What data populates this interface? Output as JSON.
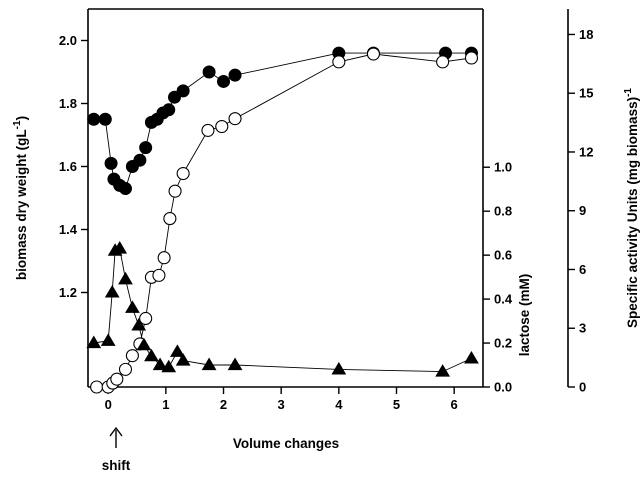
{
  "chart_data": {
    "type": "line",
    "xlabel": "Volume changes",
    "annotation": "shift",
    "x_ticks": [
      0,
      1,
      2,
      3,
      4,
      5,
      6
    ],
    "xlim": [
      -0.35,
      6.5
    ],
    "axes": {
      "left": {
        "label": "biomass dry weight (gL",
        "superscript": "-1",
        "label_suffix": ")",
        "ticks": [
          1.2,
          1.4,
          1.6,
          1.8,
          2.0
        ],
        "tick_labels": [
          "1.2",
          "1.4",
          "1.6",
          "1.8",
          "2.0"
        ],
        "ylim": [
          0.9,
          2.1
        ]
      },
      "middle": {
        "label": "lactose (mM)",
        "ticks": [
          0.0,
          0.2,
          0.4,
          0.6,
          0.8,
          1.0
        ],
        "tick_labels": [
          "0.0",
          "0.2",
          "0.4",
          "0.6",
          "0.8",
          "1.0"
        ],
        "ylim": [
          0,
          1.72
        ]
      },
      "right": {
        "label": "Specific activity Units (mg biomass)",
        "superscript": "-1",
        "ticks": [
          0,
          3,
          6,
          9,
          12,
          15,
          18
        ],
        "tick_labels": [
          "0",
          "3",
          "6",
          "9",
          "12",
          "15",
          "18"
        ],
        "ylim": [
          0,
          19.3
        ]
      }
    },
    "series": [
      {
        "marker": "filled-circle",
        "axis": "left",
        "points": [
          [
            -0.25,
            1.75
          ],
          [
            -0.05,
            1.75
          ],
          [
            0.05,
            1.61
          ],
          [
            0.1,
            1.56
          ],
          [
            0.2,
            1.54
          ],
          [
            0.3,
            1.53
          ],
          [
            0.42,
            1.6
          ],
          [
            0.55,
            1.62
          ],
          [
            0.65,
            1.66
          ],
          [
            0.75,
            1.74
          ],
          [
            0.85,
            1.75
          ],
          [
            0.95,
            1.77
          ],
          [
            1.05,
            1.78
          ],
          [
            1.15,
            1.82
          ],
          [
            1.3,
            1.84
          ],
          [
            1.75,
            1.9
          ],
          [
            2.0,
            1.87
          ],
          [
            2.2,
            1.89
          ],
          [
            4.0,
            1.96
          ],
          [
            4.6,
            1.96
          ],
          [
            5.85,
            1.96
          ],
          [
            6.3,
            1.96
          ]
        ]
      },
      {
        "marker": "open-circle",
        "axis": "right",
        "points": [
          [
            -0.2,
            0.0
          ],
          [
            0.0,
            0.0
          ],
          [
            0.08,
            0.2
          ],
          [
            0.15,
            0.4
          ],
          [
            0.3,
            0.9
          ],
          [
            0.42,
            1.6
          ],
          [
            0.55,
            2.2
          ],
          [
            0.65,
            3.5
          ],
          [
            0.75,
            5.6
          ],
          [
            0.88,
            5.7
          ],
          [
            0.97,
            6.6
          ],
          [
            1.07,
            8.6
          ],
          [
            1.16,
            10.0
          ],
          [
            1.3,
            10.9
          ],
          [
            1.73,
            13.1
          ],
          [
            1.97,
            13.3
          ],
          [
            2.2,
            13.7
          ],
          [
            4.0,
            16.6
          ],
          [
            4.6,
            17.0
          ],
          [
            5.8,
            16.6
          ],
          [
            6.3,
            16.8
          ]
        ]
      },
      {
        "marker": "filled-triangle",
        "axis": "middle",
        "points": [
          [
            -0.25,
            0.2
          ],
          [
            0.0,
            0.21
          ],
          [
            0.07,
            0.43
          ],
          [
            0.12,
            0.62
          ],
          [
            0.2,
            0.63
          ],
          [
            0.3,
            0.49
          ],
          [
            0.42,
            0.36
          ],
          [
            0.53,
            0.28
          ],
          [
            0.62,
            0.19
          ],
          [
            0.75,
            0.14
          ],
          [
            0.9,
            0.1
          ],
          [
            1.05,
            0.09
          ],
          [
            1.2,
            0.16
          ],
          [
            1.3,
            0.12
          ],
          [
            1.75,
            0.1
          ],
          [
            2.2,
            0.1
          ],
          [
            4.0,
            0.08
          ],
          [
            5.8,
            0.07
          ],
          [
            6.3,
            0.13
          ]
        ]
      }
    ]
  }
}
